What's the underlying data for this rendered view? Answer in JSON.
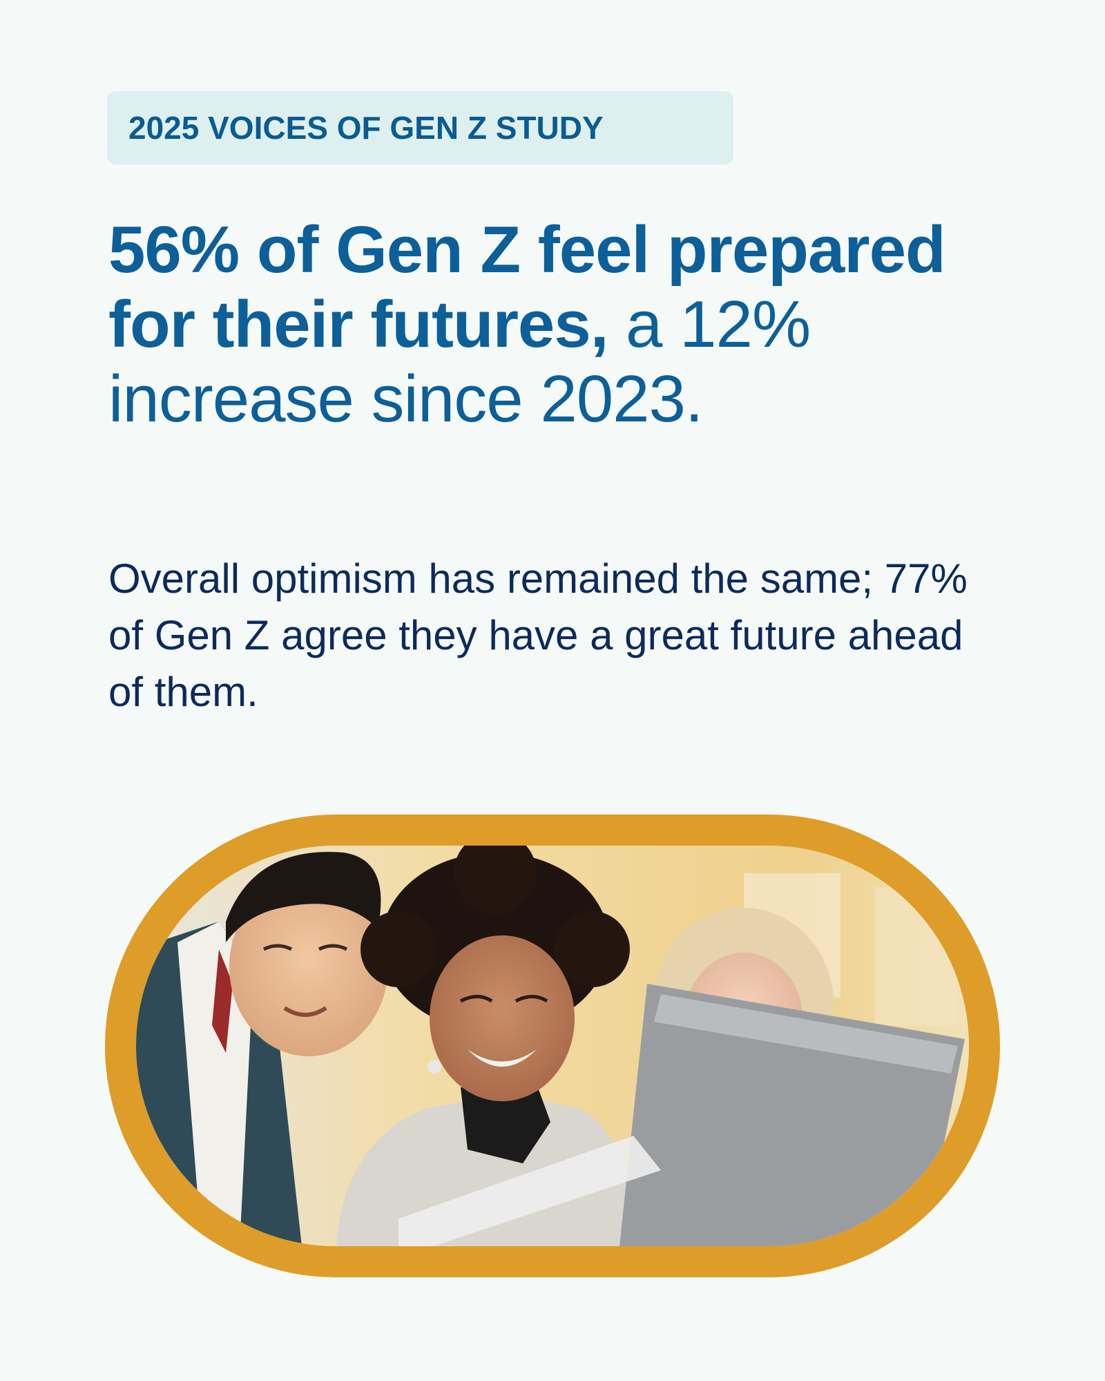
{
  "tag": {
    "label": "2025 VOICES OF GEN Z STUDY"
  },
  "headline": {
    "strong_part": "56% of Gen Z feel prepared for their futures,",
    "light_part": " a 12% increase since 2023."
  },
  "body": {
    "text": "Overall optimism has remained the same; 77% of Gen Z agree they have a great future ahead of them."
  },
  "photo": {
    "subject": "three smiling young people looking at a laptop outdoors"
  },
  "colors": {
    "background": "#f5faf8",
    "tag_background": "#ddf0ef",
    "headline": "#0d5f99",
    "body_text": "#0d2a5c",
    "frame": "#dd9d28"
  }
}
